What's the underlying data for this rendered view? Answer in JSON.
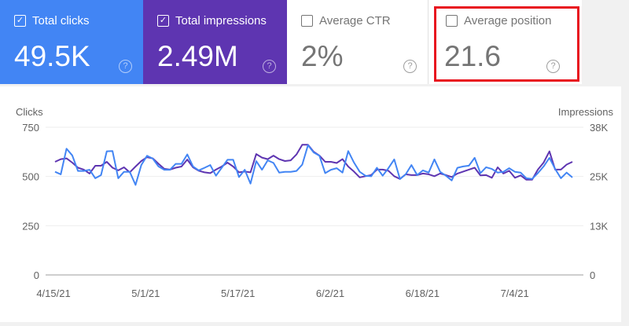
{
  "cards": [
    {
      "label": "Total clicks",
      "value": "49.5K",
      "checked": true,
      "color": "#4285f4"
    },
    {
      "label": "Total impressions",
      "value": "2.49M",
      "checked": true,
      "color": "#5e35b1"
    },
    {
      "label": "Average CTR",
      "value": "2%",
      "checked": false
    },
    {
      "label": "Average position",
      "value": "21.6",
      "checked": false,
      "highlighted": true,
      "highlight_color": "#e8141f"
    }
  ],
  "help_icon": "?",
  "check_mark": "✓",
  "chart_data": {
    "type": "line",
    "left_axis": {
      "label": "Clicks",
      "ticks": [
        "0",
        "250",
        "500",
        "750"
      ],
      "range": [
        0,
        750
      ]
    },
    "right_axis": {
      "label": "Impressions",
      "ticks": [
        "0",
        "13K",
        "25K",
        "38K"
      ],
      "range_k": [
        0,
        38
      ]
    },
    "x_ticks": [
      "4/15/21",
      "5/1/21",
      "5/17/21",
      "6/2/21",
      "6/18/21",
      "7/4/21"
    ],
    "x_range": [
      "4/15/21",
      "7/14/21"
    ],
    "grid": true,
    "series": [
      {
        "name": "Clicks",
        "axis": "left",
        "color": "#4285f4",
        "values": [
          524,
          511,
          641,
          607,
          528,
          528,
          534,
          491,
          507,
          628,
          629,
          491,
          524,
          524,
          457,
          558,
          605,
          591,
          551,
          534,
          534,
          564,
          564,
          612,
          551,
          531,
          544,
          558,
          504,
          544,
          585,
          585,
          497,
          534,
          464,
          578,
          534,
          582,
          569,
          520,
          524,
          524,
          528,
          560,
          659,
          622,
          605,
          517,
          534,
          542,
          520,
          629,
          571,
          524,
          504,
          501,
          544,
          504,
          542,
          587,
          487,
          511,
          558,
          507,
          531,
          520,
          587,
          524,
          504,
          480,
          544,
          551,
          555,
          595,
          517,
          547,
          538,
          520,
          524,
          542,
          524,
          520,
          491,
          488,
          517,
          551,
          595,
          538,
          491,
          520,
          495
        ]
      },
      {
        "name": "Impressions",
        "axis": "right",
        "color": "#5e35b1",
        "values_k": [
          29.1,
          29.8,
          30.0,
          28.9,
          27.6,
          27.1,
          26.1,
          28.1,
          28.1,
          29.1,
          27.6,
          26.9,
          27.7,
          26.4,
          27.9,
          29.3,
          30.3,
          30.0,
          28.6,
          27.3,
          27.1,
          27.6,
          27.9,
          29.7,
          27.7,
          26.8,
          26.4,
          26.2,
          27.1,
          27.9,
          28.9,
          27.9,
          26.4,
          26.6,
          26.4,
          31.1,
          30.2,
          29.8,
          30.7,
          29.8,
          29.3,
          29.5,
          31.0,
          33.5,
          33.5,
          31.7,
          30.7,
          29.1,
          29.1,
          28.8,
          29.8,
          27.9,
          26.6,
          25.1,
          25.4,
          25.7,
          27.1,
          27.1,
          26.8,
          25.4,
          24.7,
          25.9,
          25.7,
          25.7,
          26.1,
          25.9,
          25.4,
          26.1,
          25.7,
          25.2,
          26.1,
          26.6,
          27.1,
          27.6,
          25.6,
          25.7,
          25.0,
          27.7,
          26.1,
          26.8,
          25.0,
          25.6,
          24.5,
          24.5,
          27.1,
          28.9,
          31.8,
          27.1,
          27.1,
          28.4,
          29.1
        ]
      }
    ]
  }
}
